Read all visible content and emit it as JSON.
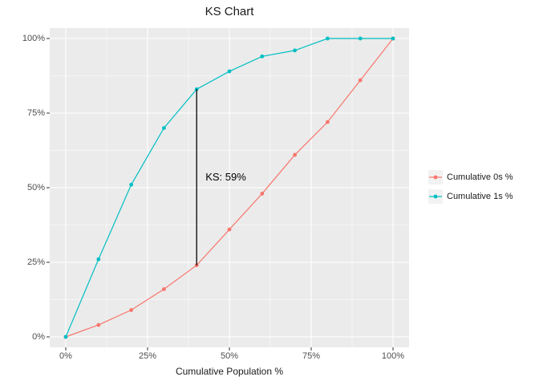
{
  "chart_data": {
    "type": "line",
    "title": "KS Chart",
    "xlabel": "Cumulative Population %",
    "ylabel": "",
    "x": [
      0,
      10,
      20,
      30,
      40,
      50,
      60,
      70,
      80,
      90,
      100
    ],
    "series": [
      {
        "name": "Cumulative 0s %",
        "color": "#F8766D",
        "values": [
          0,
          4,
          9,
          16,
          24,
          36,
          48,
          61,
          72,
          86,
          100
        ]
      },
      {
        "name": "Cumulative 1s %",
        "color": "#00BFC4",
        "values": [
          0,
          26,
          51,
          70,
          83,
          89,
          94,
          96,
          100,
          100,
          100
        ]
      }
    ],
    "x_ticks": [
      "0%",
      "25%",
      "50%",
      "75%",
      "100%"
    ],
    "x_tick_values": [
      0,
      25,
      50,
      75,
      100
    ],
    "y_ticks": [
      "0%",
      "25%",
      "50%",
      "75%",
      "100%"
    ],
    "y_tick_values": [
      0,
      25,
      50,
      75,
      100
    ],
    "minor_tick_values": [
      12.5,
      37.5,
      62.5,
      87.5
    ],
    "xlim": [
      0,
      100
    ],
    "ylim": [
      0,
      100
    ],
    "grid": true,
    "legend_position": "right",
    "annotation": {
      "label": "KS: 59%",
      "x": 40,
      "y_from": 24,
      "y_to": 83
    }
  },
  "colors": {
    "panel_bg": "#EBEBEB",
    "grid": "#FFFFFF",
    "tick_mark": "#333333",
    "axis_text": "#4d4d4d",
    "title_text": "#1a1a1a",
    "legend_key_bg": "#F2F2F2",
    "ks_line": "#000000"
  }
}
